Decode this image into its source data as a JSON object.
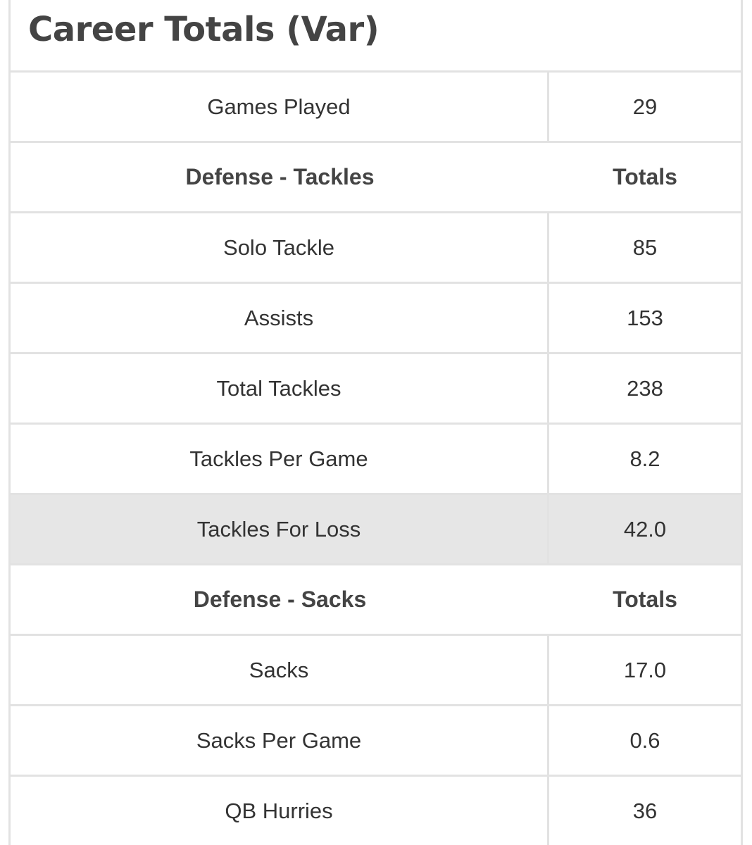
{
  "title": "Career Totals (Var)",
  "table": {
    "rows": [
      [
        "Games Played",
        "29"
      ],
      [
        "Defense - Tackles",
        "Totals"
      ],
      [
        "Solo Tackle",
        "85"
      ],
      [
        "Assists",
        "153"
      ],
      [
        "Total Tackles",
        "238"
      ],
      [
        "Tackles Per Game",
        "8.2"
      ],
      [
        "Tackles For Loss",
        "42.0"
      ],
      [
        "Defense - Sacks",
        "Totals"
      ],
      [
        "Sacks",
        "17.0"
      ],
      [
        "Sacks Per Game",
        "0.6"
      ],
      [
        "QB Hurries",
        "36"
      ]
    ]
  }
}
